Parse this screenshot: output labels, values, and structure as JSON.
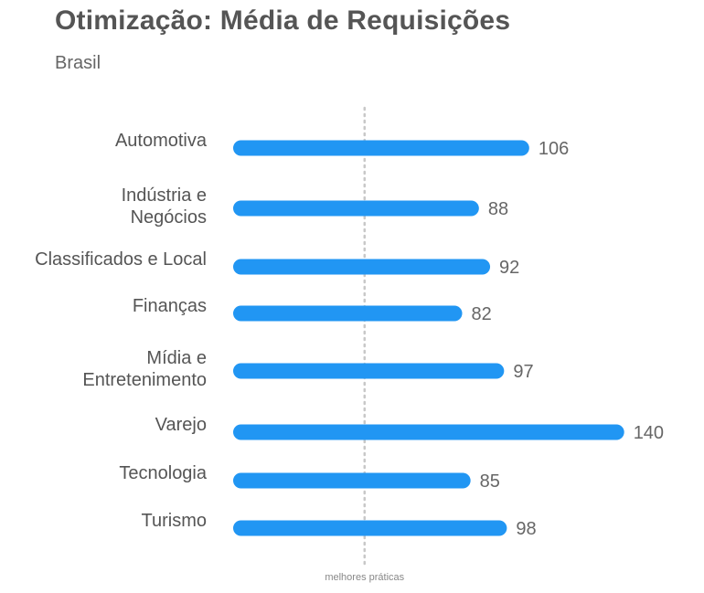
{
  "header": {
    "title": "Otimização: Média de Requisições",
    "subtitle": "Brasil"
  },
  "chart_data": {
    "type": "bar",
    "orientation": "horizontal",
    "title": "Otimização: Média de Requisições",
    "subtitle": "Brasil",
    "categories": [
      "Automotiva",
      "Indústria e Negócios",
      "Classificados e Local",
      "Finanças",
      "Mídia e Entretenimento",
      "Varejo",
      "Tecnologia",
      "Turismo"
    ],
    "category_lines": [
      [
        "Automotiva"
      ],
      [
        "Indústria e",
        "Negócios"
      ],
      [
        "Classificados e Local"
      ],
      [
        "Finanças"
      ],
      [
        "Mídia e",
        "Entretenimento"
      ],
      [
        "Varejo"
      ],
      [
        "Tecnologia"
      ],
      [
        "Turismo"
      ]
    ],
    "values": [
      106,
      88,
      92,
      82,
      97,
      140,
      85,
      98
    ],
    "value_labels": [
      "106",
      "88",
      "92",
      "82",
      "97",
      "140",
      "85",
      "98"
    ],
    "reference_line": {
      "label": "melhores práticas",
      "value": 50,
      "style": "dotted"
    },
    "bar_color": "#2196f3",
    "grid": false,
    "legend": "none",
    "xlabel": "",
    "ylabel": ""
  }
}
